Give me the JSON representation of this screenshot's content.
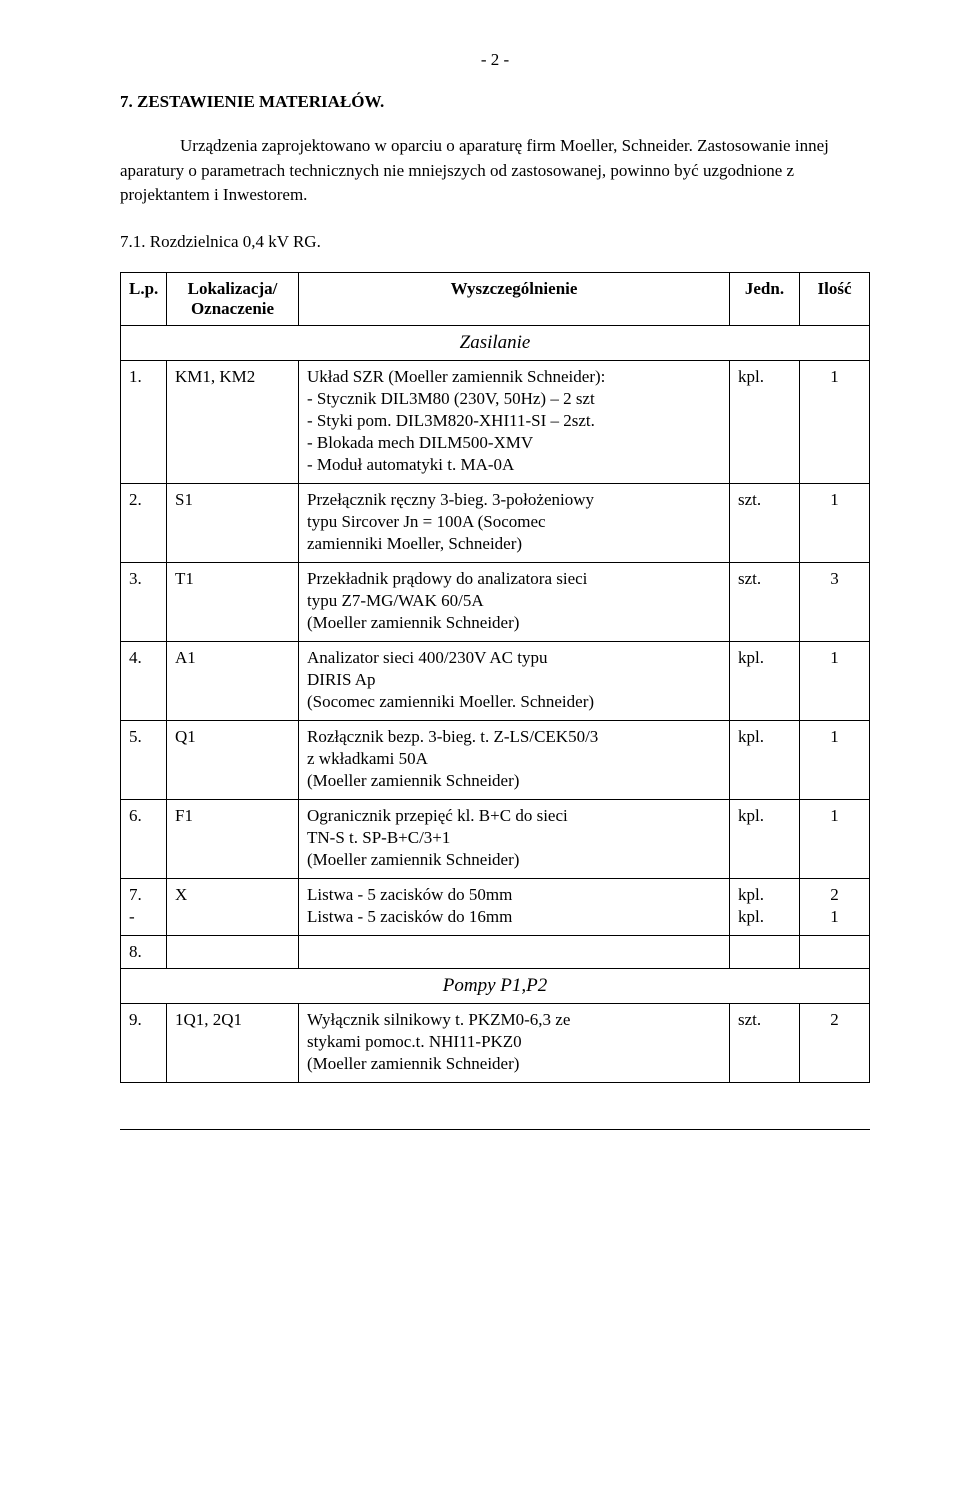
{
  "page_number_text": "-  2  -",
  "section_title": "7.  ZESTAWIENIE MATERIAŁÓW.",
  "intro_text": "Urządzenia zaprojektowano w oparciu o aparaturę firm Moeller, Schneider. Zastosowanie innej aparatury o parametrach technicznych nie mniejszych od zastosowanej, powinno być uzgodnione z projektantem i Inwestorem.",
  "subsection": "7.1. Rozdzielnica 0,4 kV RG.",
  "headers": {
    "lp": "L.p.",
    "loc1": "Lokalizacja/",
    "loc2": "Oznaczenie",
    "desc": "Wyszczególnienie",
    "unit": "Jedn.",
    "qty": "Ilość"
  },
  "section_rows": {
    "zasilanie": "Zasilanie",
    "pompy": "Pompy P1,P2"
  },
  "rows": [
    {
      "lp": "1.",
      "loc": "KM1, KM2",
      "desc": [
        "Układ SZR (Moeller zamiennik Schneider):",
        " - Stycznik  DIL3M80 (230V, 50Hz) – 2 szt",
        "- Styki pom. DIL3M820-XHI11-SI – 2szt.",
        "- Blokada mech DILM500-XMV",
        "- Moduł automatyki t. MA-0A"
      ],
      "unit": "kpl.",
      "qty": "1"
    },
    {
      "lp": "2.",
      "loc": "S1",
      "desc": [
        "Przełącznik ręczny 3-bieg. 3-położeniowy",
        "typu Sircover Jn = 100A (Socomec",
        "zamienniki Moeller, Schneider)"
      ],
      "unit": "szt.",
      "qty": "1"
    },
    {
      "lp": "3.",
      "loc": "T1",
      "desc": [
        "Przekładnik prądowy do analizatora sieci",
        "typu Z7-MG/WAK  60/5A",
        "(Moeller zamiennik Schneider)"
      ],
      "unit": "szt.",
      "qty": "3"
    },
    {
      "lp": "4.",
      "loc": "A1",
      "desc": [
        "Analizator sieci 400/230V AC typu",
        "DIRIS Ap",
        "(Socomec zamienniki Moeller. Schneider)"
      ],
      "unit": "kpl.",
      "qty": "1"
    },
    {
      "lp": "5.",
      "loc": "Q1",
      "desc": [
        "Rozłącznik bezp. 3-bieg. t. Z-LS/CEK50/3",
        "z wkładkami 50A",
        "(Moeller zamiennik Schneider)"
      ],
      "unit": "kpl.",
      "qty": "1"
    },
    {
      "lp": "6.",
      "loc": "F1",
      "desc": [
        "Ogranicznik przepięć kl. B+C do sieci",
        "TN-S t. SP-B+C/3+1",
        "(Moeller zamiennik Schneider)"
      ],
      "unit": "kpl.",
      "qty": "1"
    },
    {
      "lp_lines": [
        "7.",
        "-"
      ],
      "loc": "X",
      "desc": [
        "Listwa - 5 zacisków do 50mm",
        "Listwa  - 5 zacisków do 16mm"
      ],
      "unit_lines": [
        "kpl.",
        "kpl."
      ],
      "qty_lines": [
        "2",
        "1"
      ]
    },
    {
      "lp": "8.",
      "loc": "",
      "desc": [],
      "unit": "",
      "qty": ""
    },
    {
      "lp": "9.",
      "loc": "1Q1, 2Q1",
      "desc": [
        "Wyłącznik silnikowy t. PKZM0-6,3 ze",
        "stykami pomoc.t. NHI11-PKZ0",
        "(Moeller zamiennik Schneider)"
      ],
      "unit": "szt.",
      "qty": "2"
    }
  ],
  "colors": {
    "text": "#000000",
    "background": "#ffffff",
    "border": "#000000"
  }
}
